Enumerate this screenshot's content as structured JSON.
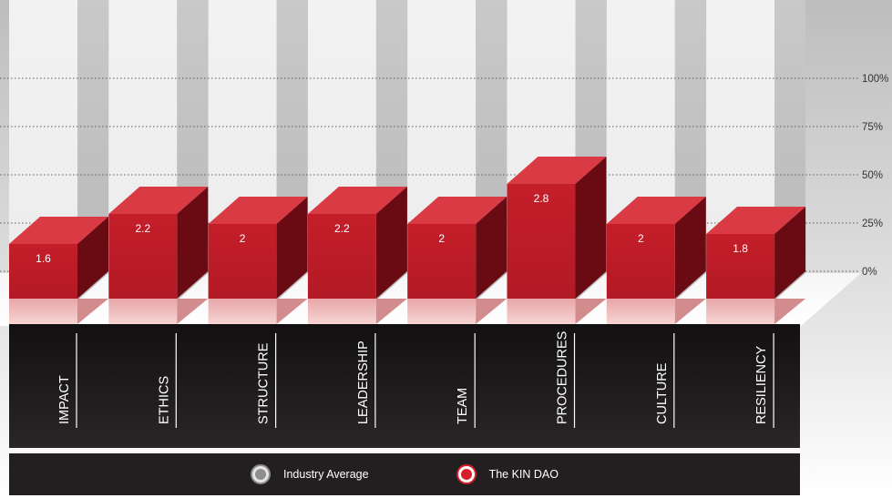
{
  "chart_data": {
    "type": "bar",
    "categories": [
      "IMPACT",
      "ETHICS",
      "STRUCTURE",
      "LEADERSHIP",
      "TEAM",
      "PROCEDURES",
      "CULTURE",
      "RESILIENCY"
    ],
    "series": [
      {
        "name": "The KIN DAO",
        "values": [
          1.6,
          2.2,
          2,
          2.2,
          2,
          2.8,
          2,
          1.8
        ]
      }
    ],
    "data_labels": [
      "1.6",
      "2.2",
      "2",
      "2.2",
      "2",
      "2.8",
      "2",
      "1.8"
    ],
    "y_ticks": [
      "100%",
      "75%",
      "50%",
      "25%",
      "0%"
    ],
    "ylim": [
      0,
      5
    ],
    "grid": true,
    "legend_position": "bottom",
    "title": "",
    "xlabel": "",
    "ylabel": ""
  },
  "legend": {
    "items": [
      {
        "label": "Industry Average",
        "icon": "gray-circle-icon",
        "color": "#8e8e8e"
      },
      {
        "label": "The KIN DAO",
        "icon": "red-circle-icon",
        "color": "#d81e2a"
      }
    ]
  },
  "colors": {
    "bar_front": "#c41e2a",
    "bar_top": "#d93a44",
    "bar_side": "#6a0a12",
    "label_band": "#231f20",
    "background_top": "#bcbcbc"
  }
}
